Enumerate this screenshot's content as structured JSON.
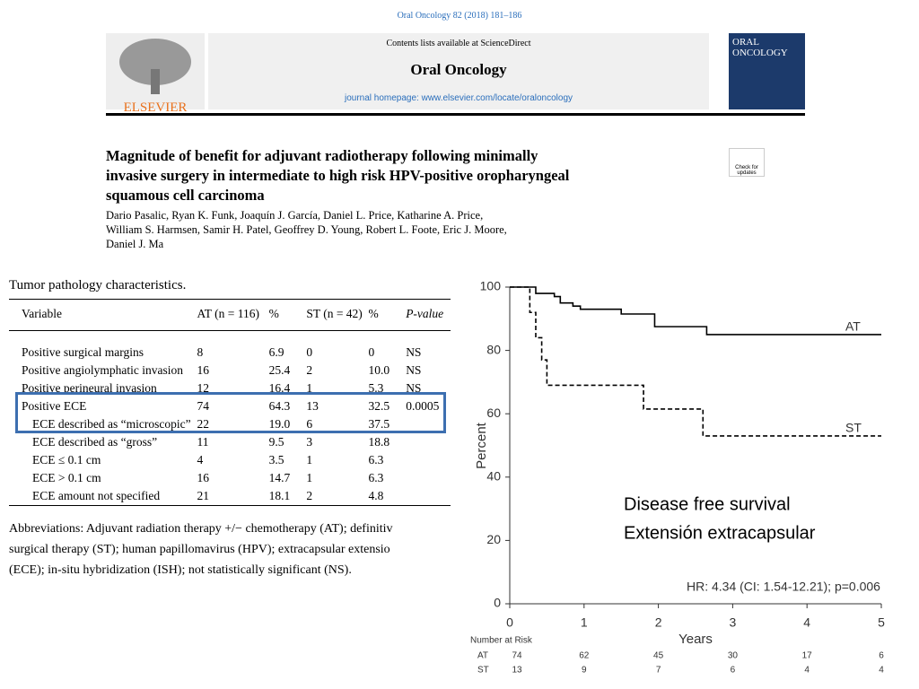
{
  "header": {
    "citation": "Oral Oncology 82 (2018) 181–186",
    "contents": "Contents lists available at ScienceDirect",
    "journal": "Oral Oncology",
    "homepage": "journal homepage: www.elsevier.com/locate/oraloncology",
    "publisher": "ELSEVIER",
    "cover": "ORAL ONCOLOGY",
    "badge": "Check for updates"
  },
  "article": {
    "title": [
      "Magnitude of benefit for adjuvant radiotherapy following minimally",
      "invasive surgery in intermediate to high risk HPV-positive oropharyngeal",
      "squamous cell carcinoma"
    ],
    "authors": [
      "Dario Pasalic, Ryan K. Funk, Joaquín J. García, Daniel L. Price, Katharine A. Price,",
      "William S. Harmsen, Samir H. Patel, Geoffrey D. Young, Robert L. Foote, Eric J. Moore,",
      "Daniel J. Ma"
    ]
  },
  "table": {
    "title": "Tumor pathology characteristics.",
    "headers": [
      "Variable",
      "AT (n = 116)",
      "%",
      "ST (n = 42)",
      "%",
      "P-value"
    ],
    "rows": [
      [
        "Positive surgical margins",
        "8",
        "6.9",
        "0",
        "0",
        "NS"
      ],
      [
        "Positive angiolymphatic invasion",
        "16",
        "25.4",
        "2",
        "10.0",
        "NS"
      ],
      [
        "Positive perineural invasion",
        "12",
        "16.4",
        "1",
        "5.3",
        "NS"
      ],
      [
        "Positive ECE",
        "74",
        "64.3",
        "13",
        "32.5",
        "0.0005"
      ],
      [
        "ECE described as “microscopic”",
        "22",
        "19.0",
        "6",
        "37.5"
      ],
      [
        "ECE described as “gross”",
        "11",
        "9.5",
        "3",
        "18.8"
      ],
      [
        "ECE ≤ 0.1 cm",
        "4",
        "3.5",
        "1",
        "6.3"
      ],
      [
        "ECE > 0.1 cm",
        "16",
        "14.7",
        "1",
        "6.3"
      ],
      [
        "ECE amount not specified",
        "21",
        "18.1",
        "2",
        "4.8"
      ]
    ],
    "footnote": [
      "Abbreviations: Adjuvant radiation therapy +/− chemotherapy (AT); definitiv",
      "surgical therapy (ST); human papillomavirus (HPV); extracapsular extensio",
      "(ECE); in-situ hybridization (ISH); not statistically significant (NS)."
    ]
  },
  "chart_data": {
    "type": "step",
    "ylabel": "Percent",
    "xlabel": "Years",
    "xlim": [
      0,
      5
    ],
    "xticks": [
      0,
      1,
      2,
      3,
      4,
      5
    ],
    "ylim": [
      0,
      100
    ],
    "yticks": [
      0,
      20,
      40,
      60,
      80,
      100
    ],
    "series": [
      {
        "name": "AT",
        "color": "#000000",
        "dash": false,
        "x": [
          0,
          0.35,
          0.35,
          0.6,
          0.6,
          0.68,
          0.68,
          0.85,
          0.85,
          0.95,
          0.95,
          1.5,
          1.5,
          1.95,
          1.95,
          2.65,
          2.65,
          5
        ],
        "values": [
          100,
          100,
          98,
          98,
          97,
          97,
          95,
          95,
          94,
          94,
          93,
          93,
          91.5,
          91.5,
          87.5,
          87.5,
          85,
          85
        ]
      },
      {
        "name": "ST",
        "color": "#000000",
        "dash": true,
        "x": [
          0,
          0.27,
          0.27,
          0.35,
          0.35,
          0.43,
          0.43,
          0.5,
          0.5,
          1.8,
          1.8,
          2.6,
          2.6,
          5
        ],
        "values": [
          100,
          100,
          92,
          92,
          84,
          84,
          77,
          77,
          69,
          69,
          61.5,
          61.5,
          53,
          53
        ]
      }
    ],
    "annotations": [
      "HR: 4.34 (CI: 1.54-12.21); p=0.006",
      "Disease free survival",
      "Extensión extracapsular"
    ],
    "risk_title": "Number at Risk",
    "risk_table": [
      {
        "name": "AT",
        "values": [
          74,
          62,
          45,
          30,
          17,
          6
        ]
      },
      {
        "name": "ST",
        "values": [
          13,
          9,
          7,
          6,
          4,
          4
        ]
      }
    ]
  }
}
